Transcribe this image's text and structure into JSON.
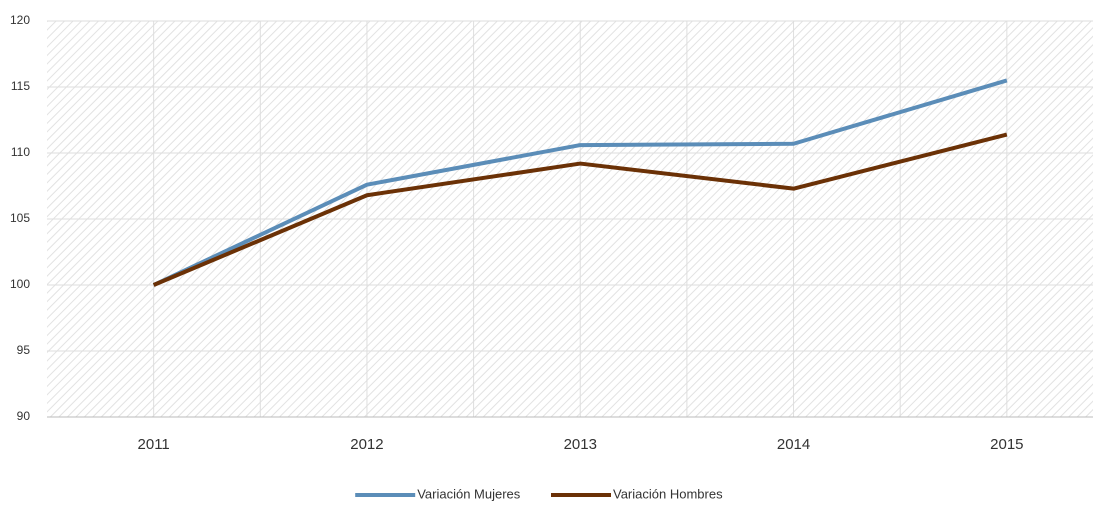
{
  "chart_data": {
    "type": "line",
    "categories": [
      "2011",
      "2012",
      "2013",
      "2014",
      "2015"
    ],
    "series": [
      {
        "name": "Variación Mujeres",
        "color": "#5b8db8",
        "values": [
          100,
          107.6,
          110.6,
          110.7,
          115.5
        ]
      },
      {
        "name": "Variación Hombres",
        "color": "#6b3106",
        "values": [
          100,
          106.8,
          109.2,
          107.3,
          111.4
        ]
      }
    ],
    "ylim": [
      90,
      120
    ],
    "yticks": [
      90,
      95,
      100,
      105,
      110,
      115,
      120
    ],
    "grid": true,
    "legend": "bottom"
  }
}
